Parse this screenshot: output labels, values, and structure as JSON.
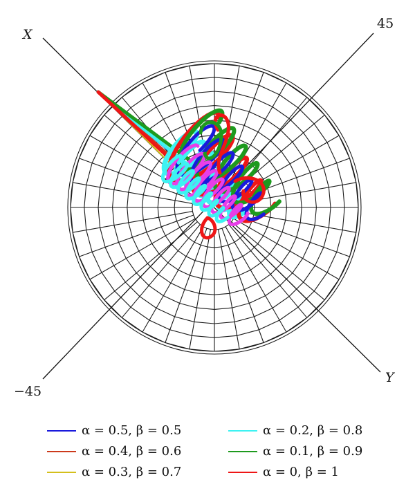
{
  "chart_data": {
    "type": "polar-3d-curve",
    "axis_labels": {
      "x": "X",
      "y": "Y",
      "angle_pos": "45",
      "angle_neg": "−45"
    },
    "grid": true,
    "legend_position": "bottom",
    "series": [
      {
        "name": "α = 0.5, β = 0.5",
        "color": "#1a1adc"
      },
      {
        "name": "α = 0.4, β = 0.6",
        "color": "#cc3a1c"
      },
      {
        "name": "α = 0.3, β = 0.7",
        "color": "#d4bf1c"
      },
      {
        "name": "α = 0.2, β = 0.8",
        "color": "#3ef2f2"
      },
      {
        "name": "α = 0.1, β = 0.9",
        "color": "#1e9a1e"
      },
      {
        "name": "α = 0, β = 1",
        "color": "#ee1616"
      }
    ]
  }
}
